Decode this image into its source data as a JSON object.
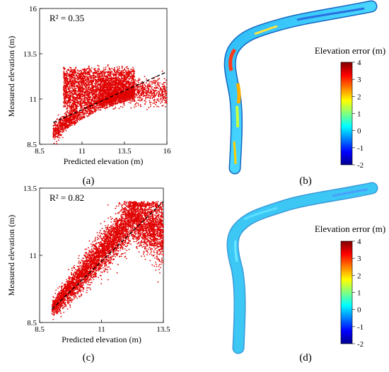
{
  "figure": {
    "panels": [
      {
        "label": "(a)"
      },
      {
        "label": "(b)"
      },
      {
        "label": "(c)"
      },
      {
        "label": "(d)"
      }
    ]
  },
  "colors": {
    "scatter_points": "#e00000",
    "trend_line": "#000000",
    "colormap": [
      "#00008f",
      "#0000ff",
      "#0080ff",
      "#00ffff",
      "#80ff80",
      "#ffff00",
      "#ff8000",
      "#ff0000",
      "#800000"
    ],
    "river_base": "#33ccff"
  },
  "chart_data": [
    {
      "type": "scatter",
      "panel": "(a)",
      "xlabel": "Predicted elevation (m)",
      "ylabel": "Measured elevation (m)",
      "xlim": [
        8.5,
        16
      ],
      "ylim": [
        8.5,
        16
      ],
      "xticks": [
        "8.5",
        "11",
        "13.5",
        "16"
      ],
      "yticks": [
        "8.5",
        "11",
        "13.5",
        "16"
      ],
      "annotation": "R² = 0.35",
      "trend_line": {
        "x": [
          9.3,
          16
        ],
        "y": [
          9.7,
          12.5
        ]
      },
      "point_cloud": {
        "approx_points": 9000,
        "x_range": [
          9.3,
          16
        ],
        "y_range": [
          8.8,
          12.7
        ]
      },
      "grid": false
    },
    {
      "type": "heatmap",
      "panel": "(b)",
      "title": "Elevation error (m)",
      "colorbar_ticks": [
        "4",
        "3",
        "2",
        "1",
        "0",
        "-1",
        "-2"
      ],
      "colorbar_range": [
        -2,
        4
      ]
    },
    {
      "type": "scatter",
      "panel": "(c)",
      "xlabel": "Predicted elevation (m)",
      "ylabel": "Measured elevation (m)",
      "xlim": [
        8.5,
        13.5
      ],
      "ylim": [
        8.5,
        13.5
      ],
      "xticks": [
        "8.5",
        "11",
        "13.5"
      ],
      "yticks": [
        "8.5",
        "11",
        "13.5"
      ],
      "annotation": "R² = 0.82",
      "trend_line": {
        "x": [
          9.0,
          13.5
        ],
        "y": [
          9.0,
          13.0
        ]
      },
      "point_cloud": {
        "approx_points": 9000,
        "x_range": [
          9.0,
          13.5
        ],
        "y_range": [
          8.8,
          13.0
        ]
      },
      "grid": false
    },
    {
      "type": "heatmap",
      "panel": "(d)",
      "title": "Elevation error (m)",
      "colorbar_ticks": [
        "4",
        "3",
        "2",
        "1",
        "0",
        "-1",
        "-2"
      ],
      "colorbar_range": [
        -2,
        4
      ]
    }
  ]
}
